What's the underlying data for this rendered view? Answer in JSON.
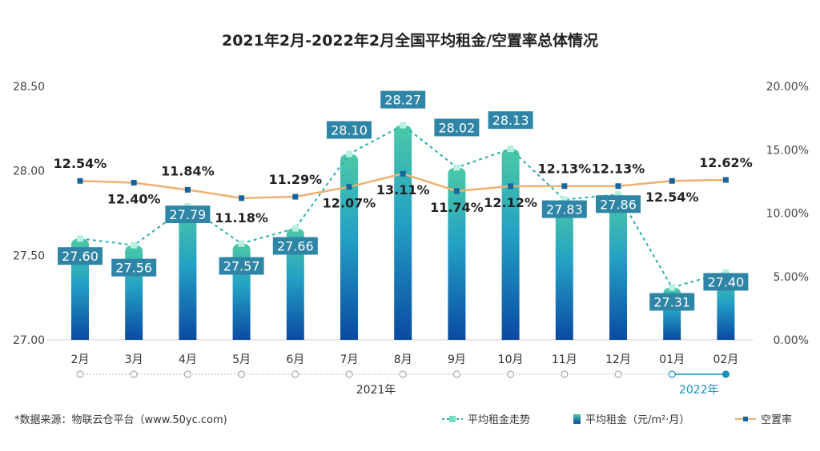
{
  "chart_data": {
    "type": "bar+line",
    "title": "2021年2月-2022年2月全国平均租金/空置率总体情况",
    "categories": [
      "2月",
      "3月",
      "4月",
      "5月",
      "6月",
      "7月",
      "8月",
      "9月",
      "10月",
      "11月",
      "12月",
      "01月",
      "02月"
    ],
    "year_labels": [
      "2021年",
      "2022年"
    ],
    "left_axis": {
      "ylim": [
        27.0,
        28.5
      ],
      "ticks": [
        "27.00",
        "27.50",
        "28.00",
        "28.50"
      ]
    },
    "right_axis": {
      "ylim": [
        0,
        20
      ],
      "ticks": [
        "0.00%",
        "5.00%",
        "10.00%",
        "15.00%",
        "20.00%"
      ]
    },
    "series": [
      {
        "name": "平均租金（元/m²·月）",
        "type": "bar",
        "axis": "left",
        "values": [
          27.6,
          27.56,
          27.79,
          27.57,
          27.66,
          28.1,
          28.27,
          28.02,
          28.13,
          27.83,
          27.86,
          27.31,
          27.4
        ],
        "labels": [
          "27.60",
          "27.56",
          "27.79",
          "27.57",
          "27.66",
          "28.10",
          "28.27",
          "28.02",
          "28.13",
          "27.83",
          "27.86",
          "27.31",
          "27.40"
        ]
      },
      {
        "name": "平均租金走势",
        "type": "line-dashed",
        "axis": "left",
        "values": [
          27.6,
          27.56,
          27.79,
          27.57,
          27.66,
          28.1,
          28.27,
          28.02,
          28.13,
          27.83,
          27.86,
          27.31,
          27.4
        ]
      },
      {
        "name": "空置率",
        "type": "line",
        "axis": "right",
        "values": [
          12.54,
          12.4,
          11.84,
          11.18,
          11.29,
          12.07,
          13.11,
          11.74,
          12.12,
          12.13,
          12.13,
          12.54,
          12.62
        ],
        "labels": [
          "12.54%",
          "12.40%",
          "11.84%",
          "11.18%",
          "11.29%",
          "12.07%",
          "13.11%",
          "11.74%",
          "12.12%",
          "12.13%",
          "12.13%",
          "12.54%",
          "12.62%"
        ]
      }
    ],
    "grid": false,
    "legend_position": "bottom-right",
    "colors": {
      "bar_top": "#4cc9a6",
      "bar_mid": "#23a0c4",
      "bar_bottom": "#0a4aa2",
      "label_box": "#2f85a6",
      "trend": "#2ab0b0",
      "vacancy": "#f0b070",
      "vacancy_marker": "#1565a0",
      "timeline_active": "#1a8fc0"
    }
  },
  "footer": {
    "source": "*数据来源：物联云仓平台（www.50yc.com)"
  },
  "legend": [
    "平均租金走势",
    "平均租金（元/m²·月）",
    "空置率"
  ]
}
